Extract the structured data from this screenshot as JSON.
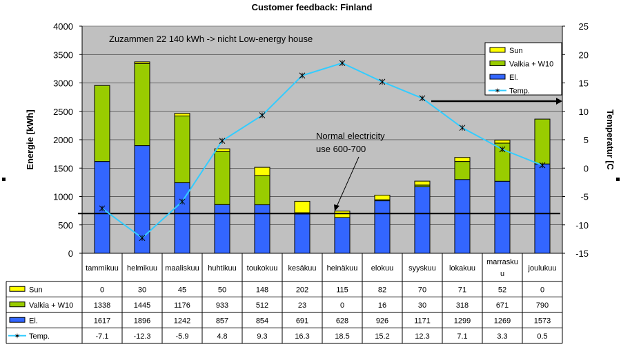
{
  "chart_data": {
    "type": "bar",
    "title": "Customer feedback: Finland",
    "ylabel": "Energie [kWh]",
    "y2label": "Temperatur [C",
    "ylim": [
      0,
      4000
    ],
    "y2lim": [
      -15,
      25
    ],
    "yticks": [
      "0",
      "500",
      "1000",
      "1500",
      "2000",
      "2500",
      "3000",
      "3500",
      "4000"
    ],
    "y2ticks": [
      "-15",
      "-10",
      "-5",
      "0",
      "5",
      "10",
      "15",
      "20",
      "25"
    ],
    "categories": [
      "tammikuu",
      "helmikuu",
      "maaliskuu",
      "huhtikuu",
      "toukokuu",
      "kesäkuu",
      "heinäkuu",
      "elokuu",
      "syyskuu",
      "lokakuu",
      "marrasku u",
      "joulukuu"
    ],
    "series": [
      {
        "name": "Sun",
        "color": "#ffff00",
        "kind": "stacked-bar",
        "values": [
          0,
          30,
          45,
          50,
          148,
          202,
          115,
          82,
          70,
          71,
          52,
          0
        ]
      },
      {
        "name": "Valkia + W10",
        "color": "#99cc00",
        "kind": "stacked-bar",
        "values": [
          1338,
          1445,
          1176,
          933,
          512,
          23,
          0,
          16,
          30,
          318,
          671,
          790
        ]
      },
      {
        "name": "El.",
        "color": "#3366ff",
        "kind": "stacked-bar",
        "values": [
          1617,
          1896,
          1242,
          857,
          854,
          691,
          628,
          926,
          1171,
          1299,
          1269,
          1573
        ]
      },
      {
        "name": "Temp.",
        "color": "#33ccff",
        "kind": "line-secondary-axis",
        "values": [
          -7.1,
          -12.3,
          -5.9,
          4.8,
          9.3,
          16.3,
          18.5,
          15.2,
          12.3,
          7.1,
          3.3,
          0.5
        ]
      }
    ],
    "table_rows": [
      {
        "label": "Sun",
        "cells": [
          "0",
          "30",
          "45",
          "50",
          "148",
          "202",
          "115",
          "82",
          "70",
          "71",
          "52",
          "0"
        ]
      },
      {
        "label": "Valkia + W10",
        "cells": [
          "1338",
          "1445",
          "1176",
          "933",
          "512",
          "23",
          "0",
          "16",
          "30",
          "318",
          "671",
          "790"
        ]
      },
      {
        "label": "El.",
        "cells": [
          "1617",
          "1896",
          "1242",
          "857",
          "854",
          "691",
          "628",
          "926",
          "1171",
          "1299",
          "1269",
          "1573"
        ]
      },
      {
        "label": "Temp.",
        "cells": [
          "-7.1",
          "-12.3",
          "-5.9",
          "4.8",
          "9.3",
          "16.3",
          "18.5",
          "15.2",
          "12.3",
          "7.1",
          "3.3",
          "0.5"
        ]
      }
    ],
    "reference_line": {
      "value": 700
    },
    "annotations": {
      "summary": "Zuzammen 22 140 kWh -> nicht Low-energy house",
      "normal_line1": "Normal electricity",
      "normal_line2": "use 600-700"
    },
    "legend_position": "top-right",
    "grid": true,
    "plot_background": "#c0c0c0"
  }
}
